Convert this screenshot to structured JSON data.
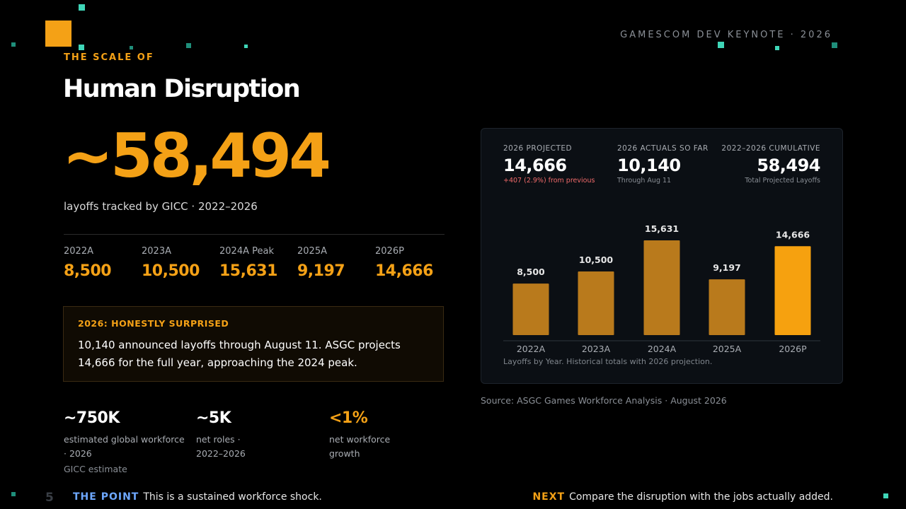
{
  "header": {
    "kicker": "THE SCALE OF",
    "title": "Human Disruption",
    "event": "GAMESCOM DEV KEYNOTE · 2026"
  },
  "hero": {
    "value": "~58,494",
    "subtitle": "layoffs tracked by GICC · 2022–2026"
  },
  "years": [
    {
      "label": "2022A",
      "value": "8,500"
    },
    {
      "label": "2023A",
      "value": "10,500"
    },
    {
      "label": "2024A Peak",
      "value": "15,631"
    },
    {
      "label": "2025A",
      "value": "9,197"
    },
    {
      "label": "2026P",
      "value": "14,666"
    }
  ],
  "callout": {
    "title": "2026: HONESTLY SURPRISED",
    "text": "10,140 announced layoffs through August 11. ASGC projects 14,666 for the full year, approaching the 2024 peak."
  },
  "stats": [
    {
      "value": "~750K",
      "desc1": "estimated global workforce",
      "desc2": "· 2026",
      "note": "GICC estimate"
    },
    {
      "value": "~5K",
      "desc1": "net roles ·",
      "desc2": "2022–2026",
      "note": ""
    },
    {
      "value": "<1%",
      "desc1": "net workforce",
      "desc2": "growth",
      "note": ""
    }
  ],
  "kpis": [
    {
      "label": "2026 PROJECTED",
      "value": "14,666",
      "sub": "+407 (2.9%) from previous"
    },
    {
      "label": "2026 ACTUALS SO FAR",
      "value": "10,140",
      "sub": "Through Aug 11"
    },
    {
      "label": "2022–2026 CUMULATIVE",
      "value": "58,494",
      "sub": "Total Projected Layoffs"
    }
  ],
  "chart_data": {
    "type": "bar",
    "categories": [
      "2022A",
      "2023A",
      "2024A",
      "2025A",
      "2026P"
    ],
    "values": [
      8500,
      10500,
      15631,
      9197,
      14666
    ],
    "data_labels": [
      "8,500",
      "10,500",
      "15,631",
      "9,197",
      "14,666"
    ],
    "ylim": [
      0,
      15631
    ],
    "caption": "Layoffs by Year. Historical totals with 2026 projection.",
    "colors": {
      "historical": "#b97a1c",
      "projection": "#f6a10f",
      "label": "#e6e6e6",
      "axis": "#2e343c"
    }
  },
  "source": "Source: ASGC Games Workforce Analysis · August 2026",
  "footer": {
    "page": "5",
    "left_tag": "THE POINT",
    "left_text": "This is a sustained workforce shock.",
    "right_tag": "NEXT",
    "right_text": "Compare the disruption with the jobs actually added."
  },
  "colors": {
    "accent": "#f4a116",
    "teal": "#3fd6b8",
    "background": "#000000",
    "panel": "#0b0f14"
  }
}
